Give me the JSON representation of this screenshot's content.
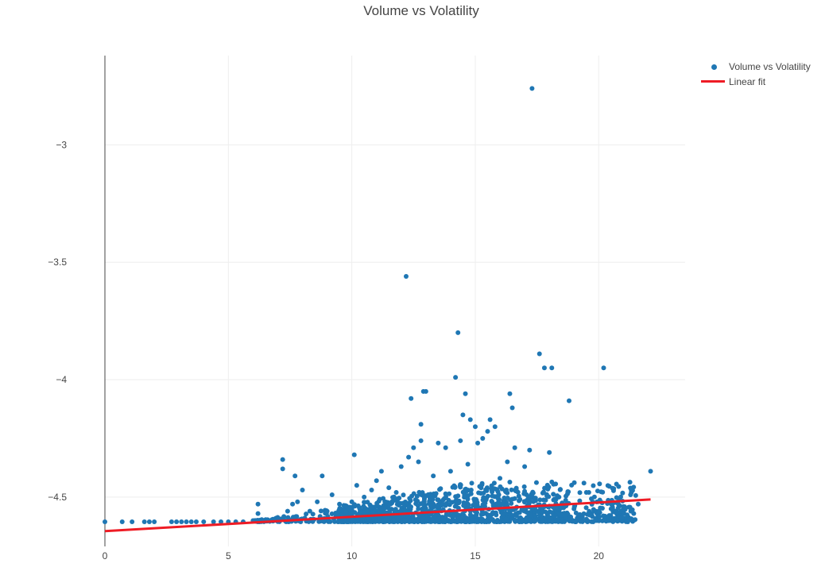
{
  "chart_data": {
    "type": "scatter",
    "title": "Volume vs Volatility",
    "xlabel": "",
    "ylabel": "",
    "xlim": [
      0,
      23.5
    ],
    "ylim": [
      -4.71,
      -2.62
    ],
    "x_ticks": [
      0,
      5,
      10,
      15,
      20
    ],
    "x_tick_labels": [
      "0",
      "5",
      "10",
      "15",
      "20"
    ],
    "y_ticks": [
      -3,
      -3.5,
      -4,
      -4.5
    ],
    "y_tick_labels": [
      "−3",
      "−3.5",
      "−4",
      "−4.5"
    ],
    "grid": true,
    "legend_position": "top-right",
    "series": [
      {
        "name": "Volume vs Volatility",
        "kind": "markers",
        "color": "#1f77b4",
        "points": [
          [
            0.0,
            -4.605
          ],
          [
            0.7,
            -4.605
          ],
          [
            1.1,
            -4.605
          ],
          [
            1.6,
            -4.605
          ],
          [
            1.8,
            -4.605
          ],
          [
            2.0,
            -4.605
          ],
          [
            2.7,
            -4.605
          ],
          [
            2.9,
            -4.605
          ],
          [
            3.1,
            -4.605
          ],
          [
            3.3,
            -4.605
          ],
          [
            3.5,
            -4.605
          ],
          [
            3.7,
            -4.605
          ],
          [
            4.0,
            -4.605
          ],
          [
            4.4,
            -4.605
          ],
          [
            4.7,
            -4.605
          ],
          [
            5.0,
            -4.605
          ],
          [
            5.3,
            -4.605
          ],
          [
            5.6,
            -4.605
          ],
          [
            6.0,
            -4.6
          ],
          [
            6.2,
            -4.53
          ],
          [
            6.2,
            -4.57
          ],
          [
            7.2,
            -4.34
          ],
          [
            7.2,
            -4.38
          ],
          [
            7.4,
            -4.56
          ],
          [
            7.6,
            -4.53
          ],
          [
            7.7,
            -4.41
          ],
          [
            7.8,
            -4.52
          ],
          [
            8.0,
            -4.47
          ],
          [
            8.3,
            -4.56
          ],
          [
            8.6,
            -4.52
          ],
          [
            8.8,
            -4.41
          ],
          [
            9.0,
            -4.56
          ],
          [
            9.2,
            -4.49
          ],
          [
            9.5,
            -4.53
          ],
          [
            9.9,
            -4.55
          ],
          [
            10.0,
            -4.52
          ],
          [
            10.1,
            -4.32
          ],
          [
            10.2,
            -4.45
          ],
          [
            10.5,
            -4.5
          ],
          [
            10.8,
            -4.47
          ],
          [
            11.0,
            -4.43
          ],
          [
            11.2,
            -4.39
          ],
          [
            11.5,
            -4.46
          ],
          [
            11.8,
            -4.48
          ],
          [
            12.0,
            -4.37
          ],
          [
            12.2,
            -3.56
          ],
          [
            12.3,
            -4.33
          ],
          [
            12.4,
            -4.08
          ],
          [
            12.5,
            -4.29
          ],
          [
            12.7,
            -4.35
          ],
          [
            12.8,
            -4.26
          ],
          [
            12.8,
            -4.19
          ],
          [
            12.9,
            -4.05
          ],
          [
            13.0,
            -4.05
          ],
          [
            13.3,
            -4.41
          ],
          [
            13.5,
            -4.27
          ],
          [
            13.8,
            -4.29
          ],
          [
            14.0,
            -4.39
          ],
          [
            14.2,
            -3.99
          ],
          [
            14.3,
            -3.8
          ],
          [
            14.4,
            -4.26
          ],
          [
            14.5,
            -4.15
          ],
          [
            14.6,
            -4.06
          ],
          [
            14.7,
            -4.36
          ],
          [
            14.8,
            -4.17
          ],
          [
            15.0,
            -4.2
          ],
          [
            15.1,
            -4.27
          ],
          [
            15.3,
            -4.25
          ],
          [
            15.5,
            -4.22
          ],
          [
            15.6,
            -4.17
          ],
          [
            15.8,
            -4.2
          ],
          [
            16.0,
            -4.42
          ],
          [
            16.3,
            -4.35
          ],
          [
            16.4,
            -4.06
          ],
          [
            16.5,
            -4.12
          ],
          [
            16.6,
            -4.29
          ],
          [
            17.0,
            -4.37
          ],
          [
            17.2,
            -4.3
          ],
          [
            17.3,
            -2.76
          ],
          [
            17.6,
            -3.89
          ],
          [
            17.8,
            -3.95
          ],
          [
            18.0,
            -4.31
          ],
          [
            18.1,
            -3.95
          ],
          [
            18.8,
            -4.09
          ],
          [
            19.5,
            -4.48
          ],
          [
            19.6,
            -4.48
          ],
          [
            20.2,
            -3.95
          ],
          [
            22.1,
            -4.39
          ],
          [
            20.5,
            -4.55
          ],
          [
            21.0,
            -4.54
          ],
          [
            21.3,
            -4.56
          ],
          [
            21.6,
            -4.53
          ],
          [
            18.5,
            -4.53
          ],
          [
            19.0,
            -4.55
          ],
          [
            20.0,
            -4.56
          ],
          [
            18.2,
            -4.58
          ]
        ]
      },
      {
        "name": "Linear fit",
        "kind": "line",
        "color": "#ee1c25",
        "points": [
          [
            0.0,
            -4.645
          ],
          [
            22.1,
            -4.51
          ]
        ]
      }
    ]
  }
}
